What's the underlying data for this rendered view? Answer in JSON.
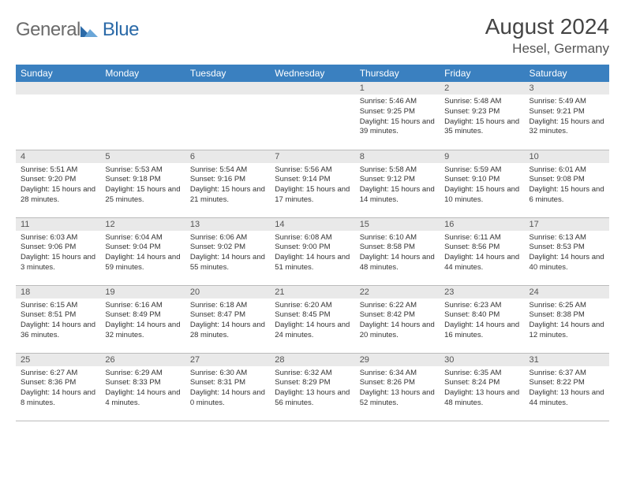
{
  "logo": {
    "general": "General",
    "blue": "Blue"
  },
  "title": "August 2024",
  "location": "Hesel, Germany",
  "colors": {
    "header_bg": "#3a80c0",
    "header_text": "#ffffff",
    "daynum_bg": "#e9e9e9",
    "border": "#bbbbbb",
    "body_text": "#333333",
    "title_text": "#444444",
    "logo_general": "#6b6b6b",
    "logo_blue": "#2b6aa8"
  },
  "weekdays": [
    "Sunday",
    "Monday",
    "Tuesday",
    "Wednesday",
    "Thursday",
    "Friday",
    "Saturday"
  ],
  "weeks": [
    [
      {
        "n": "",
        "sr": "",
        "ss": "",
        "dl": ""
      },
      {
        "n": "",
        "sr": "",
        "ss": "",
        "dl": ""
      },
      {
        "n": "",
        "sr": "",
        "ss": "",
        "dl": ""
      },
      {
        "n": "",
        "sr": "",
        "ss": "",
        "dl": ""
      },
      {
        "n": "1",
        "sr": "Sunrise: 5:46 AM",
        "ss": "Sunset: 9:25 PM",
        "dl": "Daylight: 15 hours and 39 minutes."
      },
      {
        "n": "2",
        "sr": "Sunrise: 5:48 AM",
        "ss": "Sunset: 9:23 PM",
        "dl": "Daylight: 15 hours and 35 minutes."
      },
      {
        "n": "3",
        "sr": "Sunrise: 5:49 AM",
        "ss": "Sunset: 9:21 PM",
        "dl": "Daylight: 15 hours and 32 minutes."
      }
    ],
    [
      {
        "n": "4",
        "sr": "Sunrise: 5:51 AM",
        "ss": "Sunset: 9:20 PM",
        "dl": "Daylight: 15 hours and 28 minutes."
      },
      {
        "n": "5",
        "sr": "Sunrise: 5:53 AM",
        "ss": "Sunset: 9:18 PM",
        "dl": "Daylight: 15 hours and 25 minutes."
      },
      {
        "n": "6",
        "sr": "Sunrise: 5:54 AM",
        "ss": "Sunset: 9:16 PM",
        "dl": "Daylight: 15 hours and 21 minutes."
      },
      {
        "n": "7",
        "sr": "Sunrise: 5:56 AM",
        "ss": "Sunset: 9:14 PM",
        "dl": "Daylight: 15 hours and 17 minutes."
      },
      {
        "n": "8",
        "sr": "Sunrise: 5:58 AM",
        "ss": "Sunset: 9:12 PM",
        "dl": "Daylight: 15 hours and 14 minutes."
      },
      {
        "n": "9",
        "sr": "Sunrise: 5:59 AM",
        "ss": "Sunset: 9:10 PM",
        "dl": "Daylight: 15 hours and 10 minutes."
      },
      {
        "n": "10",
        "sr": "Sunrise: 6:01 AM",
        "ss": "Sunset: 9:08 PM",
        "dl": "Daylight: 15 hours and 6 minutes."
      }
    ],
    [
      {
        "n": "11",
        "sr": "Sunrise: 6:03 AM",
        "ss": "Sunset: 9:06 PM",
        "dl": "Daylight: 15 hours and 3 minutes."
      },
      {
        "n": "12",
        "sr": "Sunrise: 6:04 AM",
        "ss": "Sunset: 9:04 PM",
        "dl": "Daylight: 14 hours and 59 minutes."
      },
      {
        "n": "13",
        "sr": "Sunrise: 6:06 AM",
        "ss": "Sunset: 9:02 PM",
        "dl": "Daylight: 14 hours and 55 minutes."
      },
      {
        "n": "14",
        "sr": "Sunrise: 6:08 AM",
        "ss": "Sunset: 9:00 PM",
        "dl": "Daylight: 14 hours and 51 minutes."
      },
      {
        "n": "15",
        "sr": "Sunrise: 6:10 AM",
        "ss": "Sunset: 8:58 PM",
        "dl": "Daylight: 14 hours and 48 minutes."
      },
      {
        "n": "16",
        "sr": "Sunrise: 6:11 AM",
        "ss": "Sunset: 8:56 PM",
        "dl": "Daylight: 14 hours and 44 minutes."
      },
      {
        "n": "17",
        "sr": "Sunrise: 6:13 AM",
        "ss": "Sunset: 8:53 PM",
        "dl": "Daylight: 14 hours and 40 minutes."
      }
    ],
    [
      {
        "n": "18",
        "sr": "Sunrise: 6:15 AM",
        "ss": "Sunset: 8:51 PM",
        "dl": "Daylight: 14 hours and 36 minutes."
      },
      {
        "n": "19",
        "sr": "Sunrise: 6:16 AM",
        "ss": "Sunset: 8:49 PM",
        "dl": "Daylight: 14 hours and 32 minutes."
      },
      {
        "n": "20",
        "sr": "Sunrise: 6:18 AM",
        "ss": "Sunset: 8:47 PM",
        "dl": "Daylight: 14 hours and 28 minutes."
      },
      {
        "n": "21",
        "sr": "Sunrise: 6:20 AM",
        "ss": "Sunset: 8:45 PM",
        "dl": "Daylight: 14 hours and 24 minutes."
      },
      {
        "n": "22",
        "sr": "Sunrise: 6:22 AM",
        "ss": "Sunset: 8:42 PM",
        "dl": "Daylight: 14 hours and 20 minutes."
      },
      {
        "n": "23",
        "sr": "Sunrise: 6:23 AM",
        "ss": "Sunset: 8:40 PM",
        "dl": "Daylight: 14 hours and 16 minutes."
      },
      {
        "n": "24",
        "sr": "Sunrise: 6:25 AM",
        "ss": "Sunset: 8:38 PM",
        "dl": "Daylight: 14 hours and 12 minutes."
      }
    ],
    [
      {
        "n": "25",
        "sr": "Sunrise: 6:27 AM",
        "ss": "Sunset: 8:36 PM",
        "dl": "Daylight: 14 hours and 8 minutes."
      },
      {
        "n": "26",
        "sr": "Sunrise: 6:29 AM",
        "ss": "Sunset: 8:33 PM",
        "dl": "Daylight: 14 hours and 4 minutes."
      },
      {
        "n": "27",
        "sr": "Sunrise: 6:30 AM",
        "ss": "Sunset: 8:31 PM",
        "dl": "Daylight: 14 hours and 0 minutes."
      },
      {
        "n": "28",
        "sr": "Sunrise: 6:32 AM",
        "ss": "Sunset: 8:29 PM",
        "dl": "Daylight: 13 hours and 56 minutes."
      },
      {
        "n": "29",
        "sr": "Sunrise: 6:34 AM",
        "ss": "Sunset: 8:26 PM",
        "dl": "Daylight: 13 hours and 52 minutes."
      },
      {
        "n": "30",
        "sr": "Sunrise: 6:35 AM",
        "ss": "Sunset: 8:24 PM",
        "dl": "Daylight: 13 hours and 48 minutes."
      },
      {
        "n": "31",
        "sr": "Sunrise: 6:37 AM",
        "ss": "Sunset: 8:22 PM",
        "dl": "Daylight: 13 hours and 44 minutes."
      }
    ]
  ]
}
